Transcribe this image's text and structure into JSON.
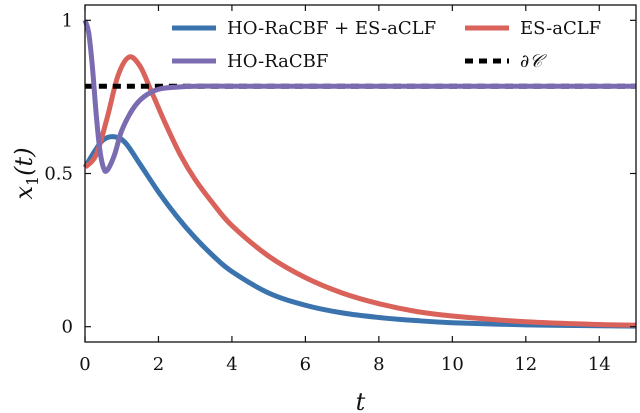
{
  "chart_data": {
    "type": "line",
    "xlabel": "t",
    "ylabel": "x1(t)",
    "xlim": [
      0,
      15
    ],
    "ylim": [
      -0.05,
      1.05
    ],
    "xticks": [
      0,
      2,
      4,
      6,
      8,
      10,
      12,
      14
    ],
    "yticks": [
      0,
      0.5,
      1
    ],
    "ytick_labels": [
      "0",
      "0.5",
      "1"
    ],
    "grid": false,
    "legend_position": "top",
    "series": [
      {
        "name": "HO-RaCBF + ES-aCLF",
        "color": "#3a73ad",
        "style": "solid",
        "x": [
          0,
          0.25,
          0.5,
          0.8,
          1.1,
          1.5,
          2,
          2.5,
          3,
          3.5,
          4,
          5,
          6,
          7,
          8,
          9,
          10,
          12,
          14,
          15
        ],
        "y": [
          0.52,
          0.57,
          0.61,
          0.62,
          0.6,
          0.53,
          0.44,
          0.36,
          0.29,
          0.23,
          0.18,
          0.11,
          0.07,
          0.045,
          0.03,
          0.02,
          0.013,
          0.006,
          0.003,
          0.002
        ]
      },
      {
        "name": "ES-aCLF",
        "color": "#d9625a",
        "style": "solid",
        "x": [
          0,
          0.3,
          0.6,
          0.9,
          1.2,
          1.5,
          1.8,
          2.2,
          2.6,
          3,
          3.5,
          4,
          5,
          6,
          7,
          8,
          9,
          10,
          12,
          14,
          15
        ],
        "y": [
          0.52,
          0.56,
          0.68,
          0.82,
          0.88,
          0.85,
          0.77,
          0.66,
          0.56,
          0.48,
          0.4,
          0.33,
          0.23,
          0.16,
          0.11,
          0.075,
          0.05,
          0.035,
          0.016,
          0.007,
          0.005
        ]
      },
      {
        "name": "HO-RaCBF",
        "color": "#7b6bb0",
        "style": "solid",
        "x": [
          0,
          0.1,
          0.2,
          0.3,
          0.4,
          0.5,
          0.6,
          0.8,
          1.0,
          1.3,
          1.6,
          2.0,
          2.5,
          3,
          4,
          6,
          8,
          10,
          12,
          14,
          15
        ],
        "y": [
          1.0,
          0.96,
          0.85,
          0.7,
          0.58,
          0.52,
          0.51,
          0.56,
          0.64,
          0.71,
          0.75,
          0.775,
          0.782,
          0.785,
          0.785,
          0.785,
          0.785,
          0.785,
          0.785,
          0.785,
          0.785
        ]
      },
      {
        "name": "∂𝒞",
        "color": "#000000",
        "style": "dashed",
        "x": [
          0,
          15
        ],
        "y": [
          0.785,
          0.785
        ]
      }
    ]
  }
}
